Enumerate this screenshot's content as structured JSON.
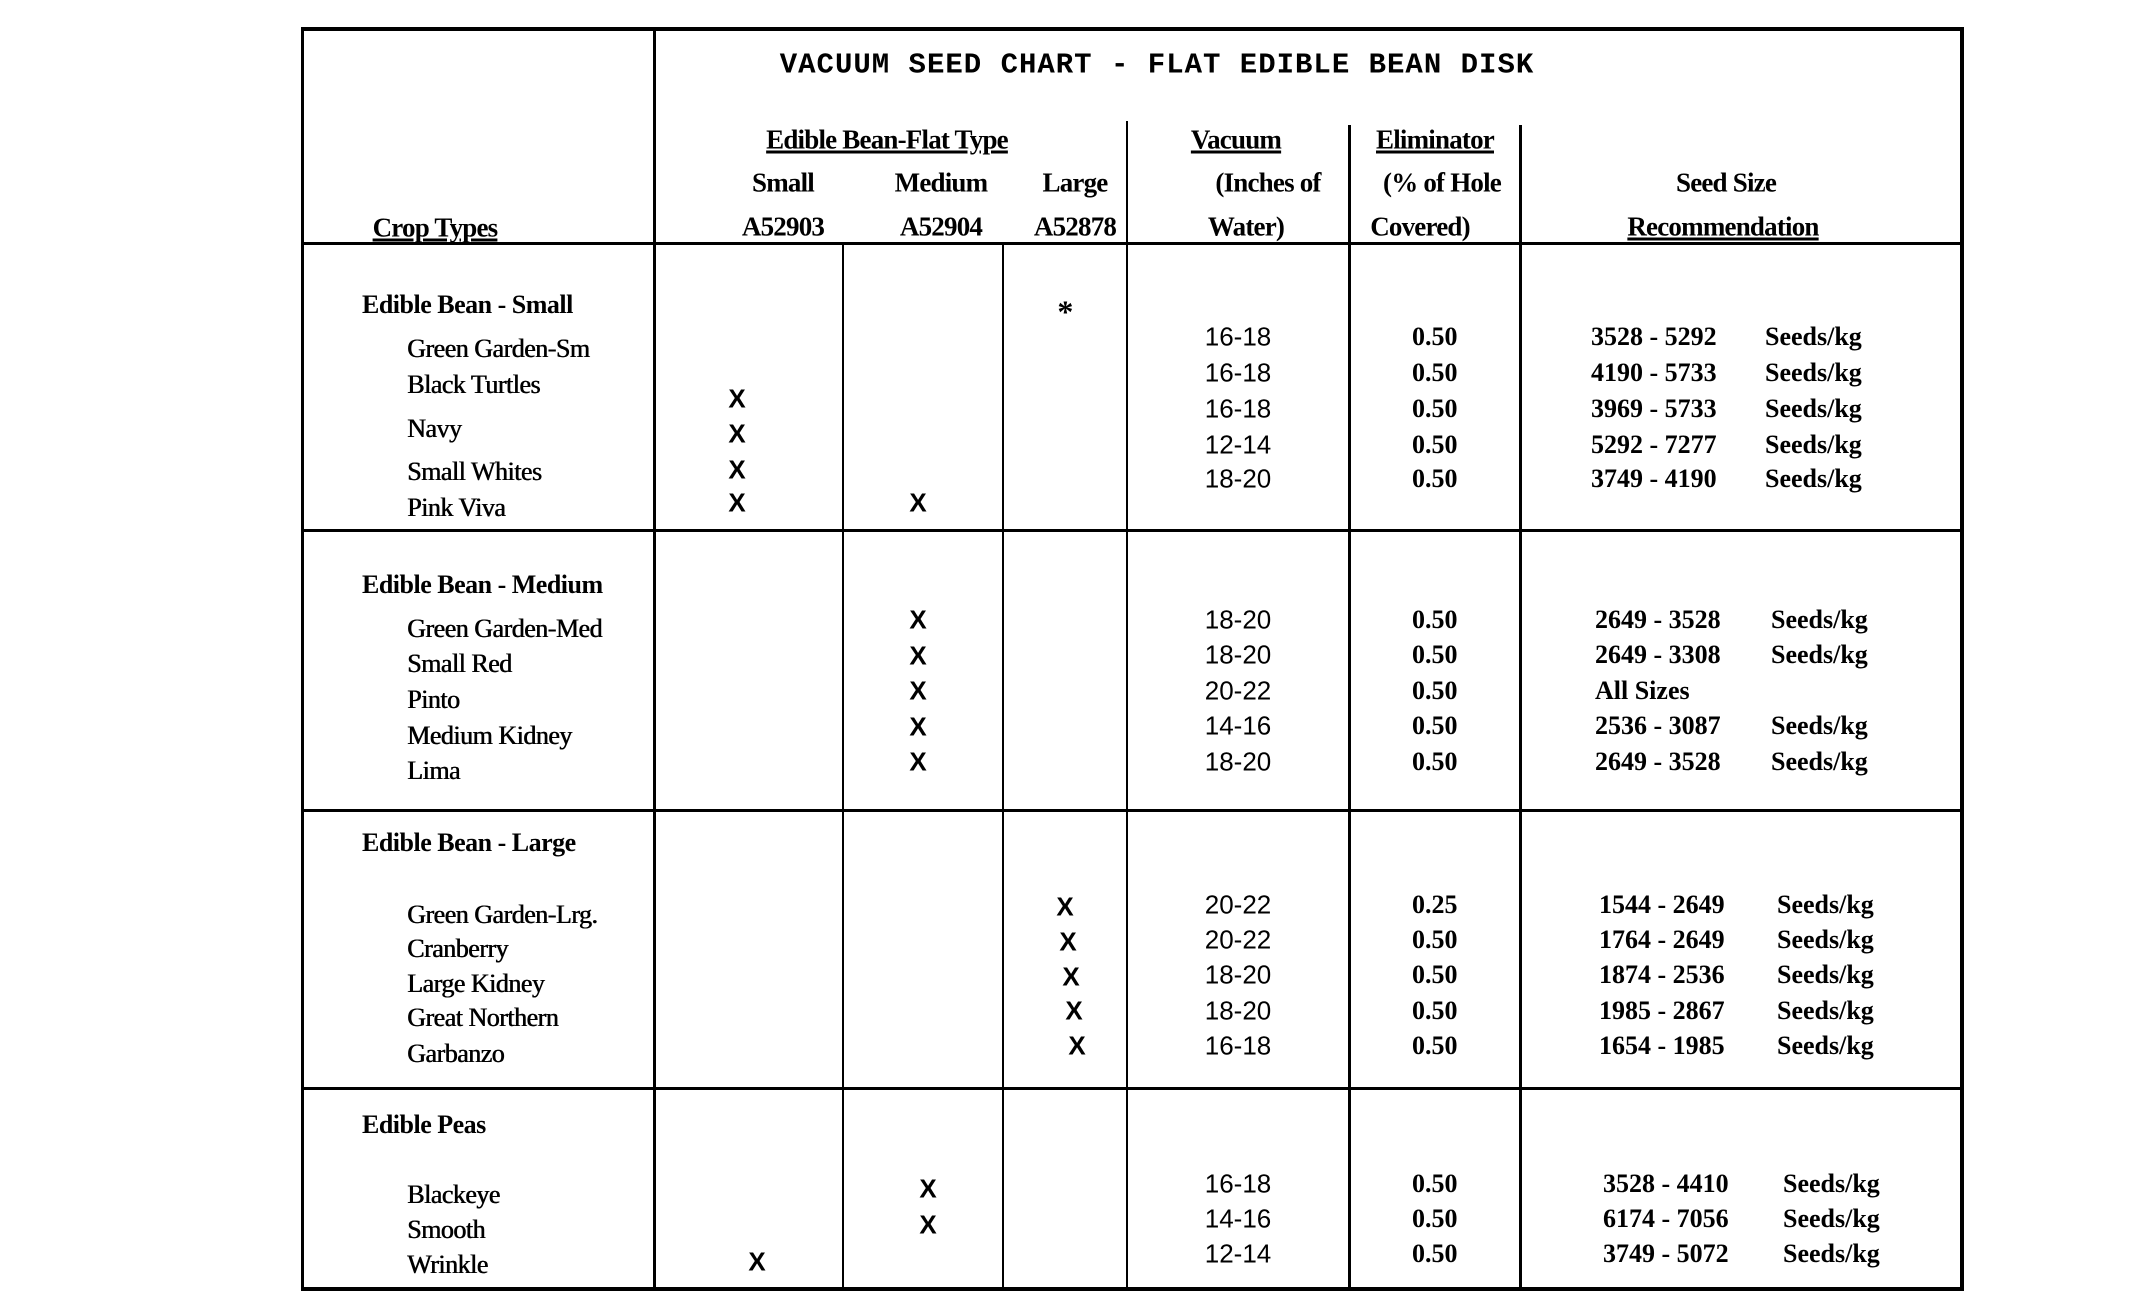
{
  "title": "VACUUM SEED CHART - FLAT EDIBLE BEAN DISK",
  "header": {
    "crop_types": "Crop Types",
    "disk_group": "Edible Bean-Flat Type",
    "small": "Small",
    "small_part": "A52903",
    "medium": "Medium",
    "medium_part": "A52904",
    "large": "Large",
    "large_part": "A52878",
    "vacuum": "Vacuum",
    "vacuum_line2": "(Inches of",
    "vacuum_line3": "Water)",
    "eliminator": "Eliminator",
    "eliminator_line2": "(% of Hole",
    "eliminator_line3": "Covered)",
    "seed_size": "Seed Size",
    "seed_size_line2": "Recommendation"
  },
  "sections": [
    {
      "name": "Edible Bean - Small",
      "large_note": "*",
      "rows": [
        {
          "name": "Green Garden-Sm",
          "small": "",
          "medium": "",
          "large": "",
          "vacuum": "16-18",
          "eliminator": "0.50",
          "seed_range": "3528 - 5292",
          "seed_unit": "Seeds/kg"
        },
        {
          "name": "Black Turtles",
          "small": "X",
          "medium": "",
          "large": "",
          "vacuum": "16-18",
          "eliminator": "0.50",
          "seed_range": "4190 - 5733",
          "seed_unit": "Seeds/kg"
        },
        {
          "name": "Navy",
          "small": "X",
          "medium": "",
          "large": "",
          "vacuum": "16-18",
          "eliminator": "0.50",
          "seed_range": "3969 - 5733",
          "seed_unit": "Seeds/kg"
        },
        {
          "name": "Small Whites",
          "small": "X",
          "medium": "",
          "large": "",
          "vacuum": "12-14",
          "eliminator": "0.50",
          "seed_range": "5292 - 7277",
          "seed_unit": "Seeds/kg"
        },
        {
          "name": "Pink Viva",
          "small": "X",
          "medium": "X",
          "large": "",
          "vacuum": "18-20",
          "eliminator": "0.50",
          "seed_range": "3749 - 4190",
          "seed_unit": "Seeds/kg"
        }
      ]
    },
    {
      "name": "Edible Bean - Medium",
      "rows": [
        {
          "name": "Green Garden-Med",
          "small": "",
          "medium": "X",
          "large": "",
          "vacuum": "18-20",
          "eliminator": "0.50",
          "seed_range": "2649 - 3528",
          "seed_unit": "Seeds/kg"
        },
        {
          "name": "Small Red",
          "small": "",
          "medium": "X",
          "large": "",
          "vacuum": "18-20",
          "eliminator": "0.50",
          "seed_range": "2649 - 3308",
          "seed_unit": "Seeds/kg"
        },
        {
          "name": "Pinto",
          "small": "",
          "medium": "X",
          "large": "",
          "vacuum": "20-22",
          "eliminator": "0.50",
          "seed_range": "All Sizes",
          "seed_unit": ""
        },
        {
          "name": "Medium Kidney",
          "small": "",
          "medium": "X",
          "large": "",
          "vacuum": "14-16",
          "eliminator": "0.50",
          "seed_range": "2536 - 3087",
          "seed_unit": "Seeds/kg"
        },
        {
          "name": "Lima",
          "small": "",
          "medium": "X",
          "large": "",
          "vacuum": "18-20",
          "eliminator": "0.50",
          "seed_range": "2649 - 3528",
          "seed_unit": "Seeds/kg"
        }
      ]
    },
    {
      "name": "Edible Bean - Large",
      "rows": [
        {
          "name": "Green Garden-Lrg.",
          "small": "",
          "medium": "",
          "large": "X",
          "vacuum": "20-22",
          "eliminator": "0.25",
          "seed_range": "1544 - 2649",
          "seed_unit": "Seeds/kg"
        },
        {
          "name": "Cranberry",
          "small": "",
          "medium": "",
          "large": "X",
          "vacuum": "20-22",
          "eliminator": "0.50",
          "seed_range": "1764 - 2649",
          "seed_unit": "Seeds/kg"
        },
        {
          "name": "Large Kidney",
          "small": "",
          "medium": "",
          "large": "X",
          "vacuum": "18-20",
          "eliminator": "0.50",
          "seed_range": "1874 - 2536",
          "seed_unit": "Seeds/kg"
        },
        {
          "name": "Great Northern",
          "small": "",
          "medium": "",
          "large": "X",
          "vacuum": "18-20",
          "eliminator": "0.50",
          "seed_range": "1985 - 2867",
          "seed_unit": "Seeds/kg"
        },
        {
          "name": "Garbanzo",
          "small": "",
          "medium": "",
          "large": "X",
          "vacuum": "16-18",
          "eliminator": "0.50",
          "seed_range": "1654 - 1985",
          "seed_unit": "Seeds/kg"
        }
      ]
    },
    {
      "name": "Edible Peas",
      "rows": [
        {
          "name": "Blackeye",
          "small": "",
          "medium": "X",
          "large": "",
          "vacuum": "16-18",
          "eliminator": "0.50",
          "seed_range": "3528 - 4410",
          "seed_unit": "Seeds/kg"
        },
        {
          "name": "Smooth",
          "small": "",
          "medium": "X",
          "large": "",
          "vacuum": "14-16",
          "eliminator": "0.50",
          "seed_range": "6174 - 7056",
          "seed_unit": "Seeds/kg"
        },
        {
          "name": "Wrinkle",
          "small": "X",
          "medium": "",
          "large": "",
          "vacuum": "12-14",
          "eliminator": "0.50",
          "seed_range": "3749 - 5072",
          "seed_unit": "Seeds/kg"
        }
      ]
    }
  ]
}
